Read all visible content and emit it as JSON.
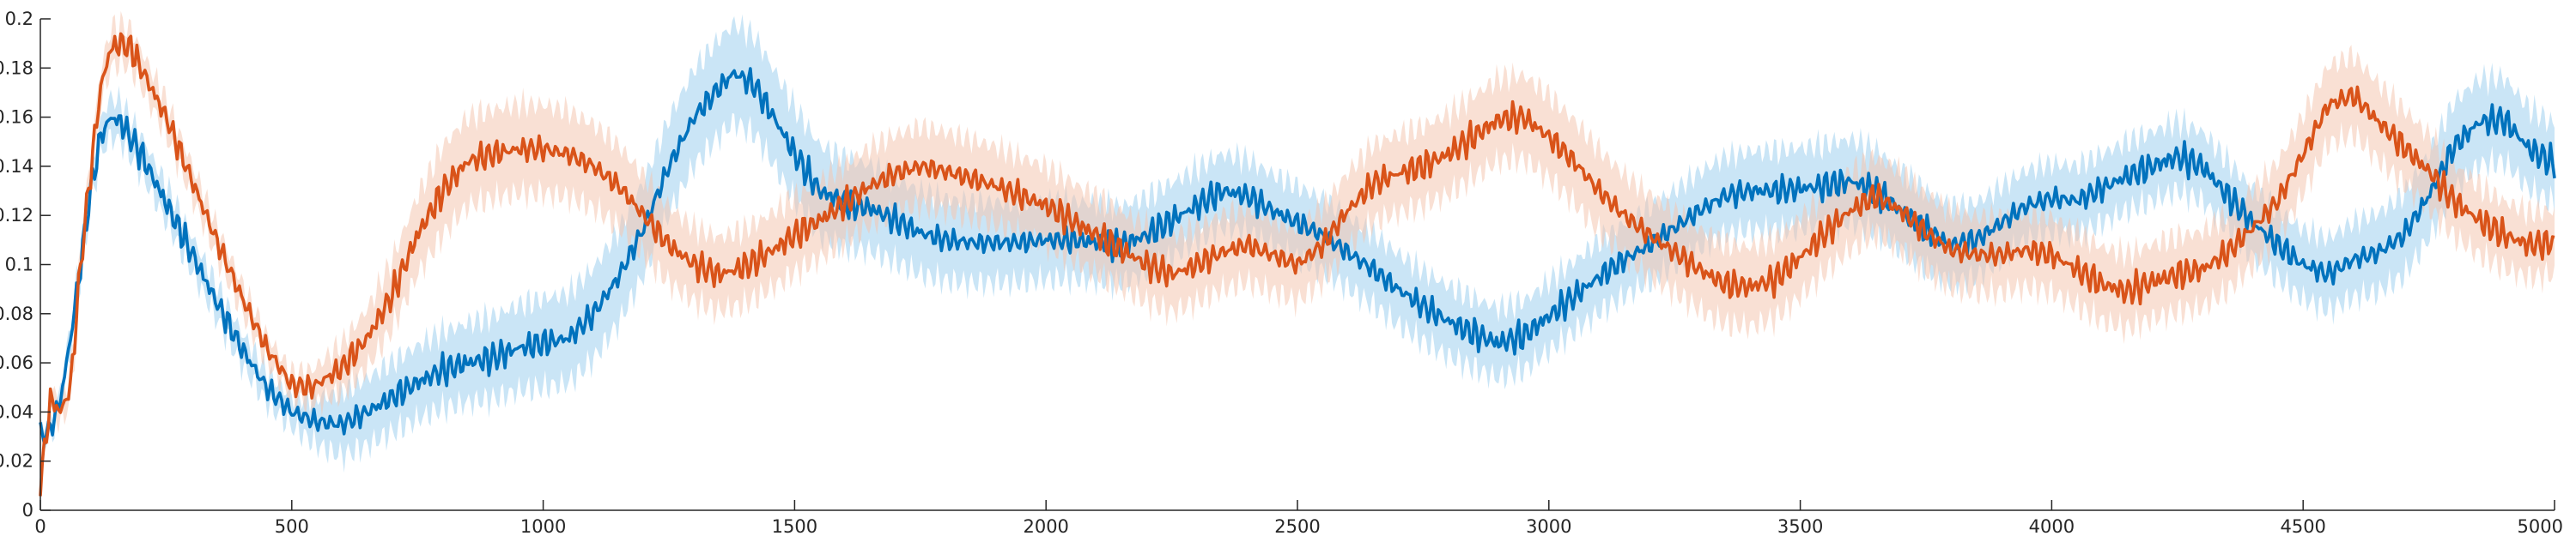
{
  "chart_data": {
    "type": "line",
    "title": "",
    "xlabel": "",
    "ylabel": "",
    "xlim": [
      0,
      5000
    ],
    "ylim": [
      0,
      0.2
    ],
    "grid": false,
    "legend": "none",
    "x_ticks": [
      0,
      500,
      1000,
      1500,
      2000,
      2500,
      3000,
      3500,
      4000,
      4500,
      5000
    ],
    "x_tick_labels": [
      "0",
      "500",
      "1000",
      "1500",
      "2000",
      "2500",
      "3000",
      "3500",
      "4000",
      "4500",
      "5000"
    ],
    "y_ticks": [
      0,
      0.02,
      0.04,
      0.06,
      0.08,
      0.1,
      0.12,
      0.14,
      0.16,
      0.18,
      0.2
    ],
    "y_tick_labels": [
      "0",
      "0.02",
      "0.04",
      "0.06",
      "0.08",
      "0.1",
      "0.12",
      "0.14",
      "0.16",
      "0.18",
      "0.2"
    ],
    "series": [
      {
        "color": "#0072BD",
        "band_color": "#9FD0EE",
        "band_half_width": [
          [
            0,
            0.003
          ],
          [
            140,
            0.008
          ],
          [
            500,
            0.006
          ],
          [
            600,
            0.013
          ],
          [
            1000,
            0.018
          ],
          [
            1400,
            0.02
          ],
          [
            1700,
            0.017
          ],
          [
            2300,
            0.015
          ],
          [
            3000,
            0.014
          ],
          [
            3600,
            0.017
          ],
          [
            4000,
            0.014
          ],
          [
            4500,
            0.014
          ],
          [
            4800,
            0.018
          ],
          [
            5000,
            0.016
          ]
        ],
        "points": [
          [
            0,
            0.03
          ],
          [
            20,
            0.033
          ],
          [
            40,
            0.045
          ],
          [
            60,
            0.07
          ],
          [
            80,
            0.1
          ],
          [
            100,
            0.13
          ],
          [
            120,
            0.152
          ],
          [
            140,
            0.16
          ],
          [
            160,
            0.158
          ],
          [
            200,
            0.145
          ],
          [
            250,
            0.125
          ],
          [
            300,
            0.105
          ],
          [
            350,
            0.085
          ],
          [
            400,
            0.066
          ],
          [
            450,
            0.05
          ],
          [
            500,
            0.04
          ],
          [
            550,
            0.036
          ],
          [
            600,
            0.035
          ],
          [
            650,
            0.04
          ],
          [
            700,
            0.046
          ],
          [
            750,
            0.052
          ],
          [
            800,
            0.057
          ],
          [
            850,
            0.06
          ],
          [
            900,
            0.062
          ],
          [
            950,
            0.066
          ],
          [
            1000,
            0.068
          ],
          [
            1050,
            0.07
          ],
          [
            1100,
            0.08
          ],
          [
            1150,
            0.095
          ],
          [
            1200,
            0.115
          ],
          [
            1250,
            0.14
          ],
          [
            1300,
            0.16
          ],
          [
            1350,
            0.172
          ],
          [
            1380,
            0.178
          ],
          [
            1420,
            0.173
          ],
          [
            1450,
            0.163
          ],
          [
            1500,
            0.145
          ],
          [
            1550,
            0.13
          ],
          [
            1600,
            0.125
          ],
          [
            1650,
            0.123
          ],
          [
            1700,
            0.118
          ],
          [
            1750,
            0.113
          ],
          [
            1800,
            0.11
          ],
          [
            1850,
            0.109
          ],
          [
            1900,
            0.109
          ],
          [
            1950,
            0.109
          ],
          [
            2000,
            0.11
          ],
          [
            2050,
            0.11
          ],
          [
            2100,
            0.109
          ],
          [
            2150,
            0.108
          ],
          [
            2200,
            0.112
          ],
          [
            2250,
            0.118
          ],
          [
            2300,
            0.124
          ],
          [
            2350,
            0.13
          ],
          [
            2400,
            0.128
          ],
          [
            2450,
            0.122
          ],
          [
            2500,
            0.117
          ],
          [
            2550,
            0.112
          ],
          [
            2600,
            0.105
          ],
          [
            2650,
            0.098
          ],
          [
            2700,
            0.09
          ],
          [
            2750,
            0.083
          ],
          [
            2800,
            0.077
          ],
          [
            2850,
            0.072
          ],
          [
            2900,
            0.068
          ],
          [
            2950,
            0.071
          ],
          [
            3000,
            0.079
          ],
          [
            3050,
            0.087
          ],
          [
            3100,
            0.095
          ],
          [
            3150,
            0.102
          ],
          [
            3200,
            0.108
          ],
          [
            3250,
            0.115
          ],
          [
            3300,
            0.122
          ],
          [
            3350,
            0.128
          ],
          [
            3400,
            0.13
          ],
          [
            3450,
            0.13
          ],
          [
            3500,
            0.131
          ],
          [
            3550,
            0.132
          ],
          [
            3600,
            0.134
          ],
          [
            3650,
            0.13
          ],
          [
            3700,
            0.122
          ],
          [
            3750,
            0.114
          ],
          [
            3800,
            0.108
          ],
          [
            3850,
            0.11
          ],
          [
            3900,
            0.117
          ],
          [
            3950,
            0.124
          ],
          [
            4000,
            0.127
          ],
          [
            4050,
            0.126
          ],
          [
            4100,
            0.131
          ],
          [
            4150,
            0.136
          ],
          [
            4200,
            0.14
          ],
          [
            4250,
            0.144
          ],
          [
            4300,
            0.14
          ],
          [
            4350,
            0.128
          ],
          [
            4400,
            0.117
          ],
          [
            4450,
            0.108
          ],
          [
            4500,
            0.1
          ],
          [
            4550,
            0.096
          ],
          [
            4600,
            0.102
          ],
          [
            4650,
            0.105
          ],
          [
            4700,
            0.112
          ],
          [
            4750,
            0.128
          ],
          [
            4800,
            0.148
          ],
          [
            4850,
            0.158
          ],
          [
            4900,
            0.159
          ],
          [
            4950,
            0.147
          ],
          [
            5000,
            0.141
          ]
        ]
      },
      {
        "color": "#D95319",
        "band_color": "#F4C7B0",
        "band_half_width": [
          [
            0,
            0.004
          ],
          [
            140,
            0.008
          ],
          [
            500,
            0.005
          ],
          [
            600,
            0.01
          ],
          [
            800,
            0.018
          ],
          [
            1000,
            0.018
          ],
          [
            1300,
            0.015
          ],
          [
            1800,
            0.016
          ],
          [
            2500,
            0.015
          ],
          [
            2950,
            0.017
          ],
          [
            3500,
            0.016
          ],
          [
            4100,
            0.015
          ],
          [
            4600,
            0.016
          ],
          [
            5000,
            0.013
          ]
        ],
        "points": [
          [
            0,
            0.01
          ],
          [
            20,
            0.045
          ],
          [
            40,
            0.04
          ],
          [
            60,
            0.05
          ],
          [
            80,
            0.1
          ],
          [
            100,
            0.138
          ],
          [
            120,
            0.172
          ],
          [
            140,
            0.188
          ],
          [
            160,
            0.19
          ],
          [
            180,
            0.188
          ],
          [
            200,
            0.18
          ],
          [
            250,
            0.16
          ],
          [
            300,
            0.135
          ],
          [
            350,
            0.11
          ],
          [
            400,
            0.087
          ],
          [
            450,
            0.066
          ],
          [
            500,
            0.051
          ],
          [
            540,
            0.05
          ],
          [
            600,
            0.058
          ],
          [
            650,
            0.07
          ],
          [
            700,
            0.088
          ],
          [
            750,
            0.112
          ],
          [
            800,
            0.13
          ],
          [
            850,
            0.142
          ],
          [
            900,
            0.145
          ],
          [
            950,
            0.147
          ],
          [
            1000,
            0.147
          ],
          [
            1050,
            0.145
          ],
          [
            1100,
            0.14
          ],
          [
            1150,
            0.132
          ],
          [
            1200,
            0.12
          ],
          [
            1250,
            0.108
          ],
          [
            1300,
            0.1
          ],
          [
            1350,
            0.096
          ],
          [
            1400,
            0.099
          ],
          [
            1450,
            0.105
          ],
          [
            1500,
            0.112
          ],
          [
            1550,
            0.118
          ],
          [
            1600,
            0.125
          ],
          [
            1650,
            0.132
          ],
          [
            1700,
            0.137
          ],
          [
            1750,
            0.14
          ],
          [
            1800,
            0.138
          ],
          [
            1850,
            0.135
          ],
          [
            1900,
            0.132
          ],
          [
            1950,
            0.128
          ],
          [
            2000,
            0.124
          ],
          [
            2050,
            0.118
          ],
          [
            2100,
            0.112
          ],
          [
            2150,
            0.106
          ],
          [
            2200,
            0.1
          ],
          [
            2250,
            0.096
          ],
          [
            2300,
            0.1
          ],
          [
            2350,
            0.105
          ],
          [
            2400,
            0.108
          ],
          [
            2450,
            0.104
          ],
          [
            2500,
            0.1
          ],
          [
            2550,
            0.108
          ],
          [
            2600,
            0.122
          ],
          [
            2650,
            0.133
          ],
          [
            2700,
            0.137
          ],
          [
            2750,
            0.14
          ],
          [
            2800,
            0.145
          ],
          [
            2850,
            0.152
          ],
          [
            2900,
            0.159
          ],
          [
            2950,
            0.16
          ],
          [
            3000,
            0.152
          ],
          [
            3050,
            0.142
          ],
          [
            3100,
            0.13
          ],
          [
            3150,
            0.12
          ],
          [
            3200,
            0.112
          ],
          [
            3250,
            0.105
          ],
          [
            3300,
            0.098
          ],
          [
            3350,
            0.092
          ],
          [
            3400,
            0.091
          ],
          [
            3450,
            0.094
          ],
          [
            3500,
            0.103
          ],
          [
            3550,
            0.113
          ],
          [
            3600,
            0.122
          ],
          [
            3650,
            0.128
          ],
          [
            3700,
            0.122
          ],
          [
            3750,
            0.113
          ],
          [
            3800,
            0.106
          ],
          [
            3850,
            0.104
          ],
          [
            3900,
            0.104
          ],
          [
            3950,
            0.106
          ],
          [
            4000,
            0.104
          ],
          [
            4050,
            0.098
          ],
          [
            4100,
            0.092
          ],
          [
            4150,
            0.089
          ],
          [
            4200,
            0.093
          ],
          [
            4250,
            0.096
          ],
          [
            4300,
            0.098
          ],
          [
            4350,
            0.105
          ],
          [
            4400,
            0.115
          ],
          [
            4450,
            0.126
          ],
          [
            4500,
            0.145
          ],
          [
            4550,
            0.165
          ],
          [
            4600,
            0.169
          ],
          [
            4650,
            0.158
          ],
          [
            4700,
            0.148
          ],
          [
            4750,
            0.138
          ],
          [
            4800,
            0.126
          ],
          [
            4850,
            0.118
          ],
          [
            4900,
            0.112
          ],
          [
            4950,
            0.108
          ],
          [
            5000,
            0.109
          ]
        ]
      }
    ]
  }
}
